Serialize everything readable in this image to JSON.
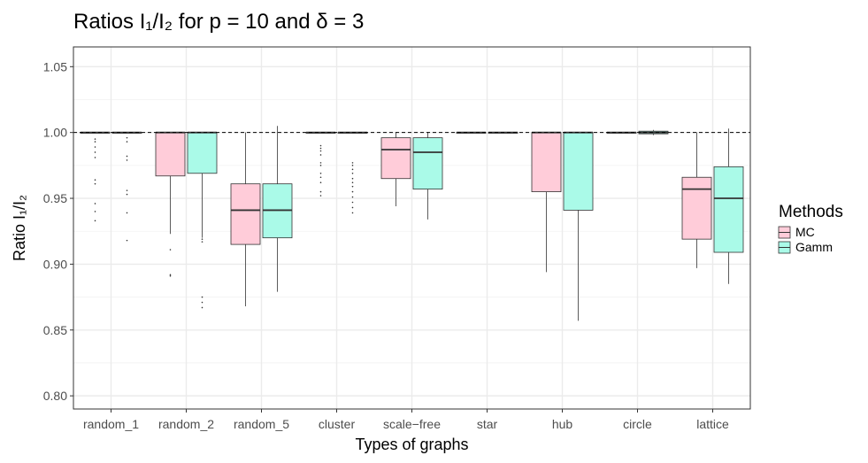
{
  "chart_data": {
    "type": "boxplot",
    "title": "Ratios I₁/I₂ for p = 10 and δ = 3",
    "xlabel": "Types of graphs",
    "ylabel": "Ratio I₁/I₂",
    "ylim": [
      0.79,
      1.065
    ],
    "yticks": [
      0.8,
      0.85,
      0.9,
      0.95,
      1.0,
      1.05
    ],
    "ytick_labels": [
      "0.80",
      "0.85",
      "0.90",
      "0.95",
      "1.00",
      "1.05"
    ],
    "reference_line": 1.0,
    "categories": [
      "random_1",
      "random_2",
      "random_5",
      "cluster",
      "scale−free",
      "star",
      "hub",
      "circle",
      "lattice"
    ],
    "legend": {
      "title": "Methods",
      "position": "right"
    },
    "series": [
      {
        "name": "MC",
        "color": "#FFCCD9",
        "boxes": [
          {
            "min": 1.0,
            "q1": 1.0,
            "median": 1.0,
            "q3": 1.0,
            "max": 1.0,
            "outliers": [
              0.933,
              0.94,
              0.946,
              0.961,
              0.964,
              0.981,
              0.985,
              0.989,
              0.993,
              0.995
            ]
          },
          {
            "min": 0.923,
            "q1": 0.967,
            "median": 1.0,
            "q3": 1.0,
            "max": 1.0,
            "outliers": [
              0.891,
              0.892,
              0.911
            ]
          },
          {
            "min": 0.868,
            "q1": 0.915,
            "median": 0.941,
            "q3": 0.961,
            "max": 1.0,
            "outliers": []
          },
          {
            "min": 1.0,
            "q1": 1.0,
            "median": 1.0,
            "q3": 1.0,
            "max": 1.0,
            "outliers": [
              0.952,
              0.955,
              0.962,
              0.966,
              0.969,
              0.975,
              0.977,
              0.983,
              0.986,
              0.988,
              0.99
            ]
          },
          {
            "min": 0.944,
            "q1": 0.965,
            "median": 0.987,
            "q3": 0.996,
            "max": 1.0,
            "outliers": []
          },
          {
            "min": 1.0,
            "q1": 1.0,
            "median": 1.0,
            "q3": 1.0,
            "max": 1.0,
            "outliers": []
          },
          {
            "min": 0.894,
            "q1": 0.955,
            "median": 1.0,
            "q3": 1.0,
            "max": 1.0,
            "outliers": []
          },
          {
            "min": 1.0,
            "q1": 1.0,
            "median": 1.0,
            "q3": 1.0,
            "max": 1.0,
            "outliers": []
          },
          {
            "min": 0.897,
            "q1": 0.919,
            "median": 0.957,
            "q3": 0.966,
            "max": 1.0,
            "outliers": []
          }
        ]
      },
      {
        "name": "Gamm",
        "color": "#AAFAE8",
        "boxes": [
          {
            "min": 1.0,
            "q1": 1.0,
            "median": 1.0,
            "q3": 1.0,
            "max": 1.0,
            "outliers": [
              0.918,
              0.939,
              0.953,
              0.956,
              0.979,
              0.982,
              0.993,
              0.996
            ]
          },
          {
            "min": 0.92,
            "q1": 0.969,
            "median": 1.0,
            "q3": 1.0,
            "max": 1.0,
            "outliers": [
              0.867,
              0.871,
              0.875,
              0.917,
              0.919
            ]
          },
          {
            "min": 0.879,
            "q1": 0.92,
            "median": 0.941,
            "q3": 0.961,
            "max": 1.005,
            "outliers": []
          },
          {
            "min": 1.0,
            "q1": 1.0,
            "median": 1.0,
            "q3": 1.0,
            "max": 1.0,
            "outliers": [
              0.939,
              0.943,
              0.947,
              0.951,
              0.955,
              0.959,
              0.962,
              0.965,
              0.969,
              0.972,
              0.975,
              0.977
            ]
          },
          {
            "min": 0.934,
            "q1": 0.957,
            "median": 0.985,
            "q3": 0.996,
            "max": 1.0,
            "outliers": []
          },
          {
            "min": 1.0,
            "q1": 1.0,
            "median": 1.0,
            "q3": 1.0,
            "max": 1.0,
            "outliers": []
          },
          {
            "min": 0.857,
            "q1": 0.941,
            "median": 1.0,
            "q3": 1.0,
            "max": 1.0,
            "outliers": []
          },
          {
            "min": 0.998,
            "q1": 0.999,
            "median": 1.0,
            "q3": 1.001,
            "max": 1.002,
            "outliers": []
          },
          {
            "min": 0.885,
            "q1": 0.909,
            "median": 0.95,
            "q3": 0.974,
            "max": 1.003,
            "outliers": []
          }
        ]
      }
    ]
  }
}
